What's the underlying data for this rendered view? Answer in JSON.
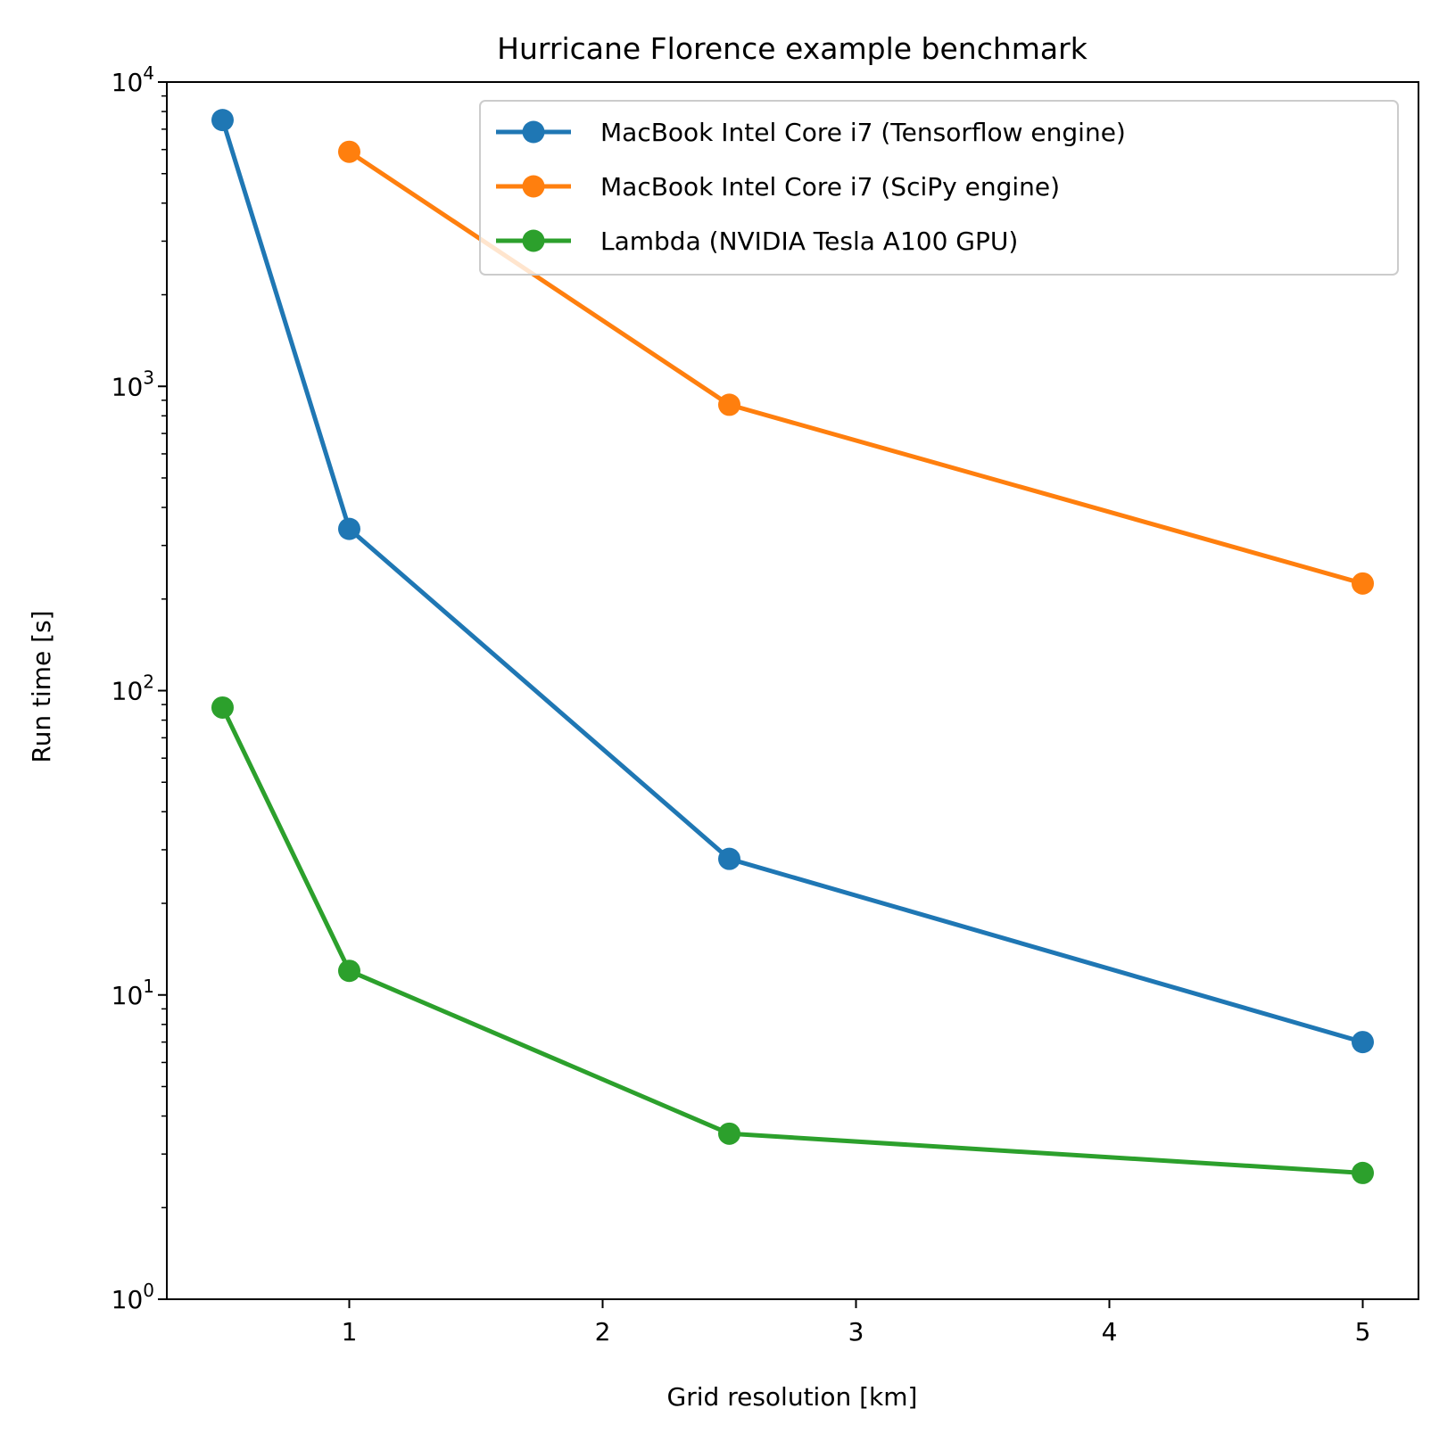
{
  "chart_data": {
    "type": "line",
    "title": "Hurricane Florence example benchmark",
    "xlabel": "Grid resolution [km]",
    "ylabel": "Run time [s]",
    "yscale": "log",
    "xlim": [
      0.28,
      5.22
    ],
    "ylim": [
      1,
      10000
    ],
    "xticks": [
      1,
      2,
      3,
      4,
      5
    ],
    "xtick_labels": [
      "1",
      "2",
      "3",
      "4",
      "5"
    ],
    "yticks": [
      {
        "value": 1,
        "base": "10",
        "exp": "0"
      },
      {
        "value": 10,
        "base": "10",
        "exp": "1"
      },
      {
        "value": 100,
        "base": "10",
        "exp": "2"
      },
      {
        "value": 1000,
        "base": "10",
        "exp": "3"
      },
      {
        "value": 10000,
        "base": "10",
        "exp": "4"
      }
    ],
    "grid": false,
    "legend_position": "top-right",
    "series": [
      {
        "name": "MacBook Intel Core i7 (Tensorflow engine)",
        "color": "#1f77b4",
        "x": [
          0.5,
          1,
          2.5,
          5
        ],
        "y": [
          7500,
          340,
          28,
          7
        ]
      },
      {
        "name": "MacBook Intel Core i7 (SciPy engine)",
        "color": "#ff7f0e",
        "x": [
          1,
          2.5,
          5
        ],
        "y": [
          5900,
          870,
          225
        ]
      },
      {
        "name": "Lambda (NVIDIA Tesla A100 GPU)",
        "color": "#2ca02c",
        "x": [
          0.5,
          1,
          2.5,
          5
        ],
        "y": [
          88,
          12,
          3.5,
          2.6
        ]
      }
    ]
  }
}
